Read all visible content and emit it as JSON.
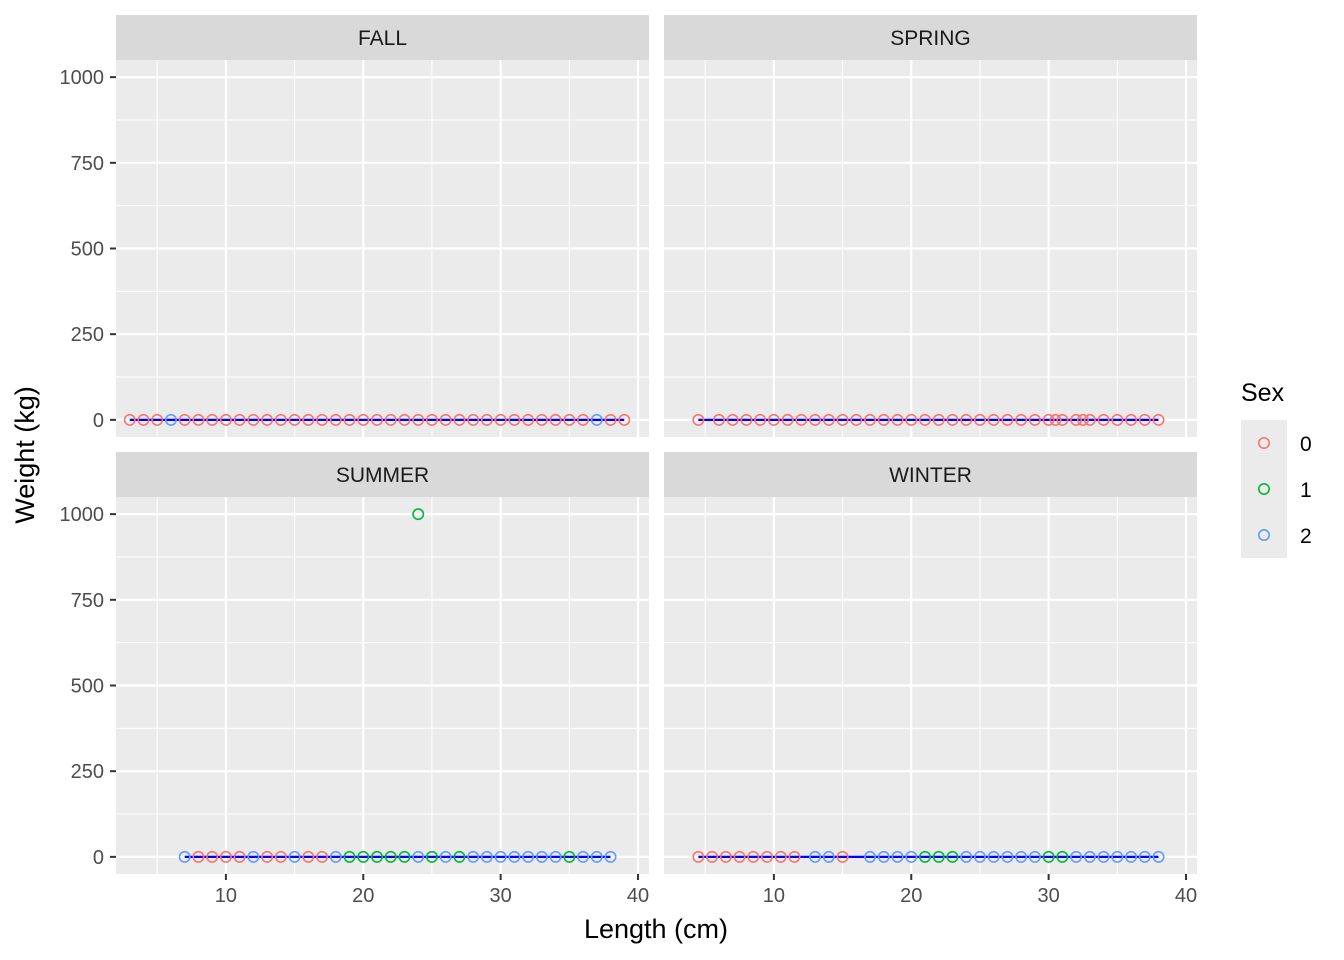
{
  "chart_data": {
    "type": "scatter",
    "xlabel": "Length (cm)",
    "ylabel": "Weight (kg)",
    "xlim": [
      2,
      40.8
    ],
    "ylim": [
      -50,
      1050
    ],
    "x_ticks": [
      10,
      20,
      30,
      40
    ],
    "y_ticks": [
      0,
      250,
      500,
      750,
      1000
    ],
    "grid": true,
    "legend": {
      "title": "Sex",
      "position": "right",
      "entries": [
        {
          "label": "0",
          "color": "#F8766D"
        },
        {
          "label": "1",
          "color": "#00BA38"
        },
        {
          "label": "2",
          "color": "#619CFF"
        }
      ]
    },
    "fit_line_color": "#0000FF",
    "facets": [
      {
        "title": "FALL",
        "fit": {
          "x": [
            3,
            39
          ],
          "y": [
            0,
            0
          ]
        },
        "series": [
          {
            "name": "0",
            "x": [
              3,
              4,
              5,
              7,
              8,
              9,
              10,
              11,
              12,
              13,
              14,
              15,
              16,
              17,
              18,
              19,
              20,
              21,
              22,
              23,
              24,
              25,
              26,
              27,
              28,
              29,
              30,
              31,
              32,
              33,
              34,
              35,
              36,
              38,
              39
            ],
            "y": [
              0,
              0,
              0,
              0,
              0,
              0,
              0,
              0,
              0,
              0,
              0,
              0,
              0,
              0,
              0,
              0,
              0,
              0,
              0,
              0,
              0,
              0,
              0,
              0,
              0,
              0,
              0,
              0,
              0,
              0,
              0,
              0,
              0,
              0,
              0
            ]
          },
          {
            "name": "1",
            "x": [],
            "y": []
          },
          {
            "name": "2",
            "x": [
              6,
              37
            ],
            "y": [
              0,
              0
            ]
          }
        ]
      },
      {
        "title": "SPRING",
        "fit": {
          "x": [
            4.5,
            38
          ],
          "y": [
            0,
            0
          ]
        },
        "series": [
          {
            "name": "0",
            "x": [
              4.5,
              6,
              7,
              8,
              9,
              10,
              11,
              12,
              13,
              14,
              15,
              16,
              17,
              18,
              19,
              20,
              21,
              22,
              23,
              24,
              25,
              26,
              27,
              28,
              29,
              30,
              30.5,
              31,
              32,
              32.5,
              33,
              34,
              35,
              36,
              37,
              38
            ],
            "y": [
              0,
              0,
              0,
              0,
              0,
              0,
              0,
              0,
              0,
              0,
              0,
              0,
              0,
              0,
              0,
              0,
              0,
              0,
              0,
              0,
              0,
              0,
              0,
              0,
              0,
              0,
              0,
              0,
              0,
              0,
              0,
              0,
              0,
              0,
              0,
              0
            ]
          },
          {
            "name": "1",
            "x": [],
            "y": []
          },
          {
            "name": "2",
            "x": [],
            "y": []
          }
        ]
      },
      {
        "title": "SUMMER",
        "fit": {
          "x": [
            7,
            38
          ],
          "y": [
            0,
            0
          ]
        },
        "series": [
          {
            "name": "0",
            "x": [
              8,
              9,
              10,
              11,
              13,
              14,
              16,
              17
            ],
            "y": [
              0,
              0,
              0,
              0,
              0,
              0,
              0,
              0
            ]
          },
          {
            "name": "1",
            "x": [
              19,
              20,
              21,
              22,
              23,
              24,
              25,
              27,
              35
            ],
            "y": [
              0,
              0,
              0,
              0,
              0,
              1000,
              0,
              0,
              0
            ]
          },
          {
            "name": "2",
            "x": [
              7,
              12,
              15,
              18,
              24,
              26,
              28,
              29,
              30,
              31,
              32,
              33,
              34,
              36,
              37,
              38
            ],
            "y": [
              0,
              0,
              0,
              0,
              0,
              0,
              0,
              0,
              0,
              0,
              0,
              0,
              0,
              0,
              0,
              0
            ]
          }
        ]
      },
      {
        "title": "WINTER",
        "fit": {
          "x": [
            4.5,
            38
          ],
          "y": [
            0,
            0
          ]
        },
        "series": [
          {
            "name": "0",
            "x": [
              4.5,
              5.5,
              6.5,
              7.5,
              8.5,
              9.5,
              10.5,
              11.5,
              15
            ],
            "y": [
              0,
              0,
              0,
              0,
              0,
              0,
              0,
              0,
              0
            ]
          },
          {
            "name": "1",
            "x": [
              21,
              22,
              23,
              30,
              31
            ],
            "y": [
              0,
              0,
              0,
              0,
              0
            ]
          },
          {
            "name": "2",
            "x": [
              13,
              14,
              17,
              18,
              19,
              20,
              24,
              25,
              26,
              27,
              28,
              29,
              32,
              33,
              34,
              35,
              36,
              37,
              38
            ],
            "y": [
              0,
              0,
              0,
              0,
              0,
              0,
              0,
              0,
              0,
              0,
              0,
              0,
              0,
              0,
              0,
              0,
              0,
              0,
              0
            ]
          }
        ]
      }
    ]
  }
}
